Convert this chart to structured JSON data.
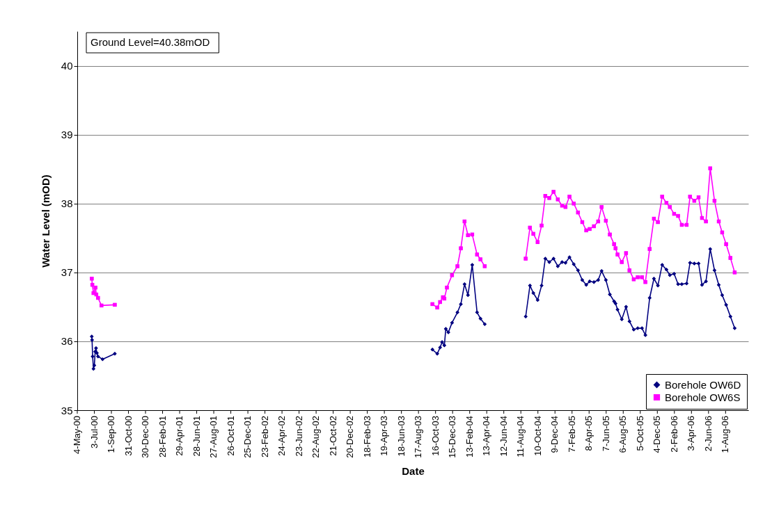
{
  "chart_data": {
    "type": "line",
    "xlabel": "Date",
    "ylabel": "Water Level (mOD)",
    "annotations": [
      "Ground Level=40.38mOD"
    ],
    "xlim": [
      "2000-05-04",
      "2006-10-20"
    ],
    "xticks": [
      {
        "value": "2000-05-04",
        "label": "4-May-00"
      },
      {
        "value": "2000-07-03",
        "label": "3-Jul-00"
      },
      {
        "value": "2000-09-01",
        "label": "1-Sep-00"
      },
      {
        "value": "2000-10-31",
        "label": "31-Oct-00"
      },
      {
        "value": "2000-12-30",
        "label": "30-Dec-00"
      },
      {
        "value": "2001-02-28",
        "label": "28-Feb-01"
      },
      {
        "value": "2001-04-29",
        "label": "29-Apr-01"
      },
      {
        "value": "2001-06-28",
        "label": "28-Jun-01"
      },
      {
        "value": "2001-08-27",
        "label": "27-Aug-01"
      },
      {
        "value": "2001-10-26",
        "label": "26-Oct-01"
      },
      {
        "value": "2001-12-25",
        "label": "25-Dec-01"
      },
      {
        "value": "2002-02-23",
        "label": "23-Feb-02"
      },
      {
        "value": "2002-04-24",
        "label": "24-Apr-02"
      },
      {
        "value": "2002-06-23",
        "label": "23-Jun-02"
      },
      {
        "value": "2002-08-22",
        "label": "22-Aug-02"
      },
      {
        "value": "2002-10-21",
        "label": "21-Oct-02"
      },
      {
        "value": "2002-12-20",
        "label": "20-Dec-02"
      },
      {
        "value": "2003-02-18",
        "label": "18-Feb-03"
      },
      {
        "value": "2003-04-19",
        "label": "19-Apr-03"
      },
      {
        "value": "2003-06-18",
        "label": "18-Jun-03"
      },
      {
        "value": "2003-08-17",
        "label": "17-Aug-03"
      },
      {
        "value": "2003-10-16",
        "label": "16-Oct-03"
      },
      {
        "value": "2003-12-15",
        "label": "15-Dec-03"
      },
      {
        "value": "2004-02-13",
        "label": "13-Feb-04"
      },
      {
        "value": "2004-04-13",
        "label": "13-Apr-04"
      },
      {
        "value": "2004-06-12",
        "label": "12-Jun-04"
      },
      {
        "value": "2004-08-11",
        "label": "11-Aug-04"
      },
      {
        "value": "2004-10-10",
        "label": "10-Oct-04"
      },
      {
        "value": "2004-12-09",
        "label": "9-Dec-04"
      },
      {
        "value": "2005-02-07",
        "label": "7-Feb-05"
      },
      {
        "value": "2005-04-08",
        "label": "8-Apr-05"
      },
      {
        "value": "2005-06-07",
        "label": "7-Jun-05"
      },
      {
        "value": "2005-08-06",
        "label": "6-Aug-05"
      },
      {
        "value": "2005-10-05",
        "label": "5-Oct-05"
      },
      {
        "value": "2005-12-04",
        "label": "4-Dec-05"
      },
      {
        "value": "2006-02-02",
        "label": "2-Feb-06"
      },
      {
        "value": "2006-04-03",
        "label": "3-Apr-06"
      },
      {
        "value": "2006-06-02",
        "label": "2-Jun-06"
      },
      {
        "value": "2006-08-01",
        "label": "1-Aug-06"
      }
    ],
    "ylim": [
      35,
      40.5
    ],
    "yticks": [
      35,
      36,
      37,
      38,
      39,
      40
    ],
    "grid": "y",
    "legend": "bottom right",
    "series": [
      {
        "name": "Borehole OW6D",
        "color": "#000080",
        "marker": "diamond",
        "x": [
          "2000-06-24",
          "2000-06-25",
          "2000-06-27",
          "2000-06-30",
          "2000-07-03",
          "2000-07-06",
          "2000-07-09",
          "2000-07-12",
          "2000-07-16",
          "2000-08-01",
          "2000-09-13",
          "2002-01-01",
          "2003-10-05",
          "2003-10-22",
          "2003-11-01",
          "2003-11-08",
          "2003-11-16",
          "2003-11-21",
          "2003-11-30",
          "2003-12-13",
          "2004-01-01",
          "2004-01-13",
          "2004-01-26",
          "2004-02-07",
          "2004-02-22",
          "2004-03-10",
          "2004-03-22",
          "2004-04-06",
          "2004-06-01",
          "2004-08-28",
          "2004-09-12",
          "2004-09-24",
          "2004-10-09",
          "2004-10-23",
          "2004-11-05",
          "2004-11-19",
          "2004-12-04",
          "2004-12-19",
          "2005-01-03",
          "2005-01-15",
          "2005-01-29",
          "2005-02-13",
          "2005-02-28",
          "2005-03-15",
          "2005-03-29",
          "2005-04-10",
          "2005-04-25",
          "2005-05-10",
          "2005-05-22",
          "2005-06-06",
          "2005-06-20",
          "2005-07-05",
          "2005-07-10",
          "2005-07-17",
          "2005-08-01",
          "2005-08-16",
          "2005-08-28",
          "2005-09-12",
          "2005-09-26",
          "2005-10-11",
          "2005-10-23",
          "2005-11-07",
          "2005-11-22",
          "2005-12-06",
          "2005-12-21",
          "2006-01-05",
          "2006-01-17",
          "2006-02-01",
          "2006-02-15",
          "2006-02-28",
          "2006-03-17",
          "2006-03-29",
          "2006-04-13",
          "2006-04-28",
          "2006-05-10",
          "2006-05-24",
          "2006-06-08",
          "2006-06-23",
          "2006-07-08",
          "2006-07-20",
          "2006-08-03",
          "2006-08-18",
          "2006-09-02"
        ],
        "values": [
          36.07,
          36.02,
          35.78,
          35.6,
          35.65,
          35.85,
          35.9,
          35.83,
          35.78,
          35.74,
          35.82,
          null,
          35.88,
          35.82,
          35.91,
          35.99,
          35.94,
          36.18,
          36.13,
          36.27,
          36.42,
          36.54,
          36.83,
          36.67,
          37.11,
          36.42,
          36.33,
          36.25,
          null,
          36.36,
          36.81,
          36.7,
          36.6,
          36.81,
          37.2,
          37.15,
          37.2,
          37.09,
          37.15,
          37.14,
          37.22,
          37.12,
          37.03,
          36.89,
          36.82,
          36.87,
          36.86,
          36.89,
          37.02,
          36.89,
          36.68,
          36.58,
          36.55,
          36.46,
          36.32,
          36.5,
          36.29,
          36.17,
          36.19,
          36.19,
          36.09,
          36.63,
          36.91,
          36.81,
          37.11,
          37.04,
          36.96,
          36.98,
          36.83,
          36.83,
          36.84,
          37.14,
          37.13,
          37.13,
          36.82,
          36.87,
          37.34,
          37.03,
          36.82,
          36.67,
          36.53,
          36.36,
          36.19
        ]
      },
      {
        "name": "Borehole OW6S",
        "color": "#ff00ff",
        "marker": "square",
        "x": [
          "2000-06-24",
          "2000-06-26",
          "2000-06-30",
          "2000-07-07",
          "2000-07-10",
          "2000-07-16",
          "2000-07-28",
          "2000-09-13",
          "2002-01-01",
          "2003-10-05",
          "2003-10-22",
          "2003-11-01",
          "2003-11-11",
          "2003-11-16",
          "2003-11-25",
          "2003-12-13",
          "2004-01-01",
          "2004-01-13",
          "2004-01-26",
          "2004-02-07",
          "2004-02-22",
          "2004-03-10",
          "2004-03-22",
          "2004-04-06",
          "2004-06-01",
          "2004-08-28",
          "2004-09-12",
          "2004-09-24",
          "2004-10-09",
          "2004-10-23",
          "2004-11-05",
          "2004-11-19",
          "2004-12-04",
          "2004-12-19",
          "2005-01-03",
          "2005-01-15",
          "2005-01-29",
          "2005-02-13",
          "2005-02-28",
          "2005-03-15",
          "2005-03-29",
          "2005-04-10",
          "2005-04-25",
          "2005-05-10",
          "2005-05-22",
          "2005-06-06",
          "2005-06-20",
          "2005-07-05",
          "2005-07-10",
          "2005-07-17",
          "2005-08-01",
          "2005-08-16",
          "2005-08-28",
          "2005-09-12",
          "2005-09-26",
          "2005-10-11",
          "2005-10-23",
          "2005-11-07",
          "2005-11-22",
          "2005-12-06",
          "2005-12-21",
          "2006-01-05",
          "2006-01-17",
          "2006-02-01",
          "2006-02-15",
          "2006-02-28",
          "2006-03-17",
          "2006-03-29",
          "2006-04-13",
          "2006-04-28",
          "2006-05-10",
          "2006-05-24",
          "2006-06-08",
          "2006-06-23",
          "2006-07-08",
          "2006-07-20",
          "2006-08-03",
          "2006-08-18",
          "2006-09-02"
        ],
        "values": [
          36.91,
          36.82,
          36.7,
          36.78,
          36.68,
          36.63,
          36.52,
          36.53,
          null,
          36.54,
          36.49,
          36.57,
          36.64,
          36.62,
          36.78,
          36.96,
          37.09,
          37.35,
          37.74,
          37.54,
          37.55,
          37.26,
          37.19,
          37.09,
          null,
          37.2,
          37.65,
          37.56,
          37.44,
          37.68,
          38.11,
          38.08,
          38.17,
          38.06,
          37.97,
          37.95,
          38.1,
          38.0,
          37.87,
          37.73,
          37.61,
          37.63,
          37.67,
          37.74,
          37.95,
          37.75,
          37.55,
          37.41,
          37.35,
          37.26,
          37.15,
          37.28,
          37.03,
          36.9,
          36.93,
          36.93,
          36.86,
          37.34,
          37.78,
          37.73,
          38.1,
          38.01,
          37.95,
          37.85,
          37.82,
          37.69,
          37.69,
          38.1,
          38.04,
          38.09,
          37.79,
          37.74,
          38.51,
          38.04,
          37.74,
          37.58,
          37.41,
          37.21,
          37.0
        ]
      }
    ]
  }
}
